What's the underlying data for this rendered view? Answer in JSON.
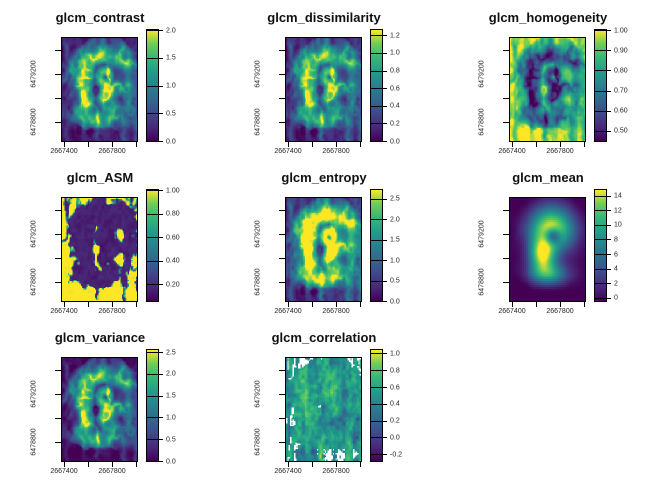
{
  "figure": {
    "background": "#ffffff",
    "palette_name": "viridis",
    "palette_hex": [
      "#440154",
      "#482878",
      "#3e4a89",
      "#31688e",
      "#26828e",
      "#1f9e89",
      "#35b779",
      "#6dcd59",
      "#fde725"
    ],
    "na_color": "#ffffff",
    "text_color": "#222222"
  },
  "chart_data": [
    {
      "type": "heatmap",
      "title": "glcm_contrast",
      "texture": "contrast",
      "x_tick_labels": [
        "2667400",
        "2667800"
      ],
      "y_tick_labels": [
        "6479200",
        "6478800"
      ],
      "x_tick_values": [
        2667400,
        2667800
      ],
      "y_tick_values": [
        6479200,
        6478800
      ],
      "colorbar_tick_labels": [
        "2.0",
        "1.5",
        "1.0",
        "0.5",
        "0.0"
      ],
      "colorbar_ticks": [
        2.0,
        1.5,
        1.0,
        0.5,
        0.0
      ],
      "colorbar_range": [
        0,
        2.0
      ],
      "palette": "viridis",
      "legend_position": "right"
    },
    {
      "type": "heatmap",
      "title": "glcm_dissimilarity",
      "texture": "dissimilarity",
      "x_tick_labels": [
        "2667400",
        "2667800"
      ],
      "y_tick_labels": [
        "6479200",
        "6478800"
      ],
      "x_tick_values": [
        2667400,
        2667800
      ],
      "y_tick_values": [
        6479200,
        6478800
      ],
      "colorbar_tick_labels": [
        "1.2",
        "1.0",
        "0.8",
        "0.6",
        "0.4",
        "0.2",
        "0.0"
      ],
      "colorbar_ticks": [
        1.2,
        1.0,
        0.8,
        0.6,
        0.4,
        0.2,
        0.0
      ],
      "colorbar_range": [
        0,
        1.26
      ],
      "palette": "viridis",
      "legend_position": "right"
    },
    {
      "type": "heatmap",
      "title": "glcm_homogeneity",
      "texture": "homogeneity",
      "x_tick_labels": [
        "2667400",
        "2667800"
      ],
      "y_tick_labels": [
        "6479200",
        "6478800"
      ],
      "x_tick_values": [
        2667400,
        2667800
      ],
      "y_tick_values": [
        6479200,
        6478800
      ],
      "colorbar_tick_labels": [
        "1.00",
        "0.90",
        "0.80",
        "0.70",
        "0.60",
        "0.50"
      ],
      "colorbar_ticks": [
        1.0,
        0.9,
        0.8,
        0.7,
        0.6,
        0.5
      ],
      "colorbar_range": [
        0.45,
        1.0
      ],
      "palette": "viridis",
      "legend_position": "right"
    },
    {
      "type": "heatmap",
      "title": "glcm_ASM",
      "texture": "asm",
      "x_tick_labels": [
        "2667400",
        "2667800"
      ],
      "y_tick_labels": [
        "6479200",
        "6478800"
      ],
      "x_tick_values": [
        2667400,
        2667800
      ],
      "y_tick_values": [
        6479200,
        6478800
      ],
      "colorbar_tick_labels": [
        "1.00",
        "0.80",
        "0.60",
        "0.40",
        "0.20"
      ],
      "colorbar_ticks": [
        1.0,
        0.8,
        0.6,
        0.4,
        0.2
      ],
      "colorbar_range": [
        0.06,
        1.0
      ],
      "palette": "viridis",
      "legend_position": "right"
    },
    {
      "type": "heatmap",
      "title": "glcm_entropy",
      "texture": "entropy",
      "x_tick_labels": [
        "2667400",
        "2667800"
      ],
      "y_tick_labels": [
        "6479200",
        "6478800"
      ],
      "x_tick_values": [
        2667400,
        2667800
      ],
      "y_tick_values": [
        6479200,
        6478800
      ],
      "colorbar_tick_labels": [
        "2.5",
        "2.0",
        "1.5",
        "1.0",
        "0.5",
        "0.0"
      ],
      "colorbar_ticks": [
        2.5,
        2.0,
        1.5,
        1.0,
        0.5,
        0.0
      ],
      "colorbar_range": [
        0,
        2.72
      ],
      "palette": "viridis",
      "legend_position": "right"
    },
    {
      "type": "heatmap",
      "title": "glcm_mean",
      "texture": "mean",
      "x_tick_labels": [
        "2667400",
        "2667800"
      ],
      "y_tick_labels": [
        "6479200",
        "6478800"
      ],
      "x_tick_values": [
        2667400,
        2667800
      ],
      "y_tick_values": [
        6479200,
        6478800
      ],
      "colorbar_tick_labels": [
        "14",
        "12",
        "10",
        "8",
        "6",
        "4",
        "2",
        "0"
      ],
      "colorbar_ticks": [
        14,
        12,
        10,
        8,
        6,
        4,
        2,
        0
      ],
      "colorbar_range": [
        -0.45,
        14.8
      ],
      "palette": "viridis",
      "legend_position": "right"
    },
    {
      "type": "heatmap",
      "title": "glcm_variance",
      "texture": "variance",
      "x_tick_labels": [
        "2667400",
        "2667800"
      ],
      "y_tick_labels": [
        "6479200",
        "6478800"
      ],
      "x_tick_values": [
        2667400,
        2667800
      ],
      "y_tick_values": [
        6479200,
        6478800
      ],
      "colorbar_tick_labels": [
        "2.5",
        "2.0",
        "1.5",
        "1.0",
        "0.5",
        "0.0"
      ],
      "colorbar_ticks": [
        2.5,
        2.0,
        1.5,
        1.0,
        0.5,
        0.0
      ],
      "colorbar_range": [
        0,
        2.55
      ],
      "palette": "viridis",
      "legend_position": "right"
    },
    {
      "type": "heatmap",
      "title": "glcm_correlation",
      "texture": "correlation",
      "x_tick_labels": [
        "2667400",
        "2667800"
      ],
      "y_tick_labels": [
        "6479200",
        "6478800"
      ],
      "x_tick_values": [
        2667400,
        2667800
      ],
      "y_tick_values": [
        6479200,
        6478800
      ],
      "colorbar_tick_labels": [
        "1.0",
        "0.8",
        "0.6",
        "0.4",
        "0.2",
        "0.0",
        "-0.2"
      ],
      "colorbar_ticks": [
        1.0,
        0.8,
        0.6,
        0.4,
        0.2,
        0.0,
        -0.2
      ],
      "colorbar_range": [
        -0.28,
        1.04
      ],
      "palette": "viridis",
      "legend_position": "right"
    }
  ]
}
